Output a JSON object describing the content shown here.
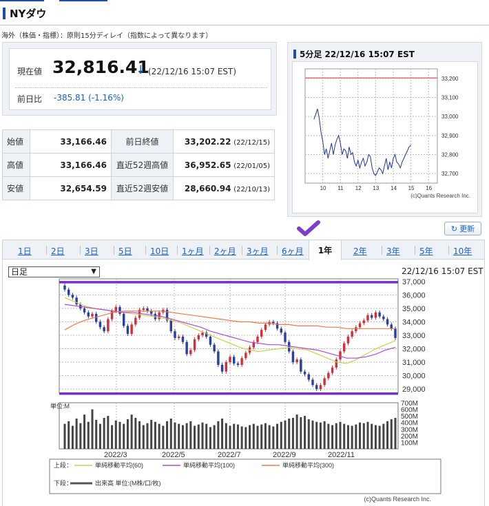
{
  "page": {
    "title": "NYダウ",
    "note": "海外（株価・指標）：原則15分ディレイ（指数によって異なります）"
  },
  "quote": {
    "current_label": "現在値",
    "current_value": "32,816.41",
    "arrow": "↓",
    "current_time": "(22/12/16 15:07 EST)",
    "change_label": "前日比",
    "change_value": "-385.81 (-1.16%)"
  },
  "stats": [
    {
      "label": "始値",
      "value": "33,166.46",
      "label2": "前日終値",
      "value2": "33,202.22",
      "date2": "(22/12/15)"
    },
    {
      "label": "高値",
      "value": "33,166.46",
      "label2": "直近52週高値",
      "value2": "36,952.65",
      "date2": "(22/01/05)"
    },
    {
      "label": "安値",
      "value": "32,654.59",
      "label2": "直近52週安値",
      "value2": "28,660.94",
      "date2": "(22/10/13)"
    }
  ],
  "refresh_label": "更新",
  "colors": {
    "accent": "#1f4ea8",
    "down": "#1a5fd0",
    "up_candle": "#d0303a",
    "down_candle": "#2b3fa0",
    "ma60": "#c8d24a",
    "ma100": "#b04ad8",
    "ma300": "#ee7a4a",
    "hline": "#7a2fc0",
    "prev_close": "#e06a7a"
  },
  "tabs": [
    {
      "label": "1日"
    },
    {
      "label": "2日"
    },
    {
      "label": "3日"
    },
    {
      "label": "5日"
    },
    {
      "label": "10日"
    },
    {
      "label": "1ヶ月"
    },
    {
      "label": "2ヶ月"
    },
    {
      "label": "3ヶ月"
    },
    {
      "label": "6ヶ月"
    },
    {
      "label": "1年",
      "active": true
    },
    {
      "label": "2年"
    },
    {
      "label": "3年"
    },
    {
      "label": "5年"
    },
    {
      "label": "10年"
    }
  ],
  "chart_data": [
    {
      "type": "line",
      "title": "5分足 22/12/16 15:07 EST",
      "x_ticks": [
        "10",
        "11",
        "12",
        "13",
        "14",
        "15",
        "16"
      ],
      "y_ticks": [
        "33,200",
        "33,100",
        "33,000",
        "32,900",
        "32,800",
        "32,700"
      ],
      "ylim": [
        32650,
        33250
      ],
      "xlim": [
        9.0,
        16.5
      ],
      "reference_line": 33202.22,
      "credit": "(c)Quants Research Inc.",
      "x": [
        9.5,
        9.6,
        9.7,
        9.8,
        9.9,
        10.0,
        10.1,
        10.2,
        10.3,
        10.4,
        10.5,
        10.6,
        10.7,
        10.8,
        10.9,
        11.0,
        11.1,
        11.2,
        11.3,
        11.4,
        11.5,
        11.6,
        11.7,
        11.8,
        11.9,
        12.0,
        12.1,
        12.2,
        12.3,
        12.4,
        12.5,
        12.6,
        12.7,
        12.8,
        12.9,
        13.0,
        13.1,
        13.2,
        13.3,
        13.4,
        13.5,
        13.6,
        13.7,
        13.8,
        13.9,
        14.0,
        14.1,
        14.2,
        14.3,
        14.4,
        14.5,
        14.6,
        14.7,
        14.8,
        14.9,
        15.0
      ],
      "y": [
        32985,
        33010,
        33040,
        32990,
        32920,
        32870,
        32800,
        32830,
        32780,
        32820,
        32860,
        32800,
        32850,
        32880,
        32900,
        32860,
        32800,
        32830,
        32820,
        32780,
        32840,
        32800,
        32810,
        32760,
        32740,
        32770,
        32730,
        32760,
        32780,
        32740,
        32760,
        32800,
        32790,
        32730,
        32700,
        32690,
        32710,
        32730,
        32720,
        32700,
        32740,
        32780,
        32720,
        32760,
        32730,
        32780,
        32800,
        32760,
        32750,
        32730,
        32760,
        32780,
        32800,
        32820,
        32840,
        32850
      ]
    },
    {
      "type": "candlestick",
      "selected_period_label": "日足",
      "timestamp": "22/12/16 15:07 EST",
      "x_ticks": [
        "2022/3",
        "2022/5",
        "2022/7",
        "2022/9",
        "2022/11"
      ],
      "y_ticks": [
        "37,000",
        "36,000",
        "35,000",
        "34,000",
        "33,000",
        "32,000",
        "31,000",
        "30,000",
        "29,000"
      ],
      "ylim": [
        28700,
        37200
      ],
      "reference_lines": [
        36952.65,
        28660.94
      ],
      "close_series": [
        36400,
        36000,
        35800,
        35300,
        35000,
        34700,
        34400,
        34600,
        34000,
        33600,
        33300,
        34200,
        34800,
        35100,
        34600,
        33700,
        33100,
        33800,
        34300,
        34900,
        35000,
        34800,
        34600,
        34200,
        34700,
        34900,
        34100,
        33300,
        32800,
        32900,
        32500,
        31600,
        31900,
        32700,
        33000,
        33200,
        32900,
        32300,
        31800,
        30800,
        30300,
        31000,
        31400,
        30900,
        30800,
        31300,
        31700,
        32100,
        32500,
        32900,
        33400,
        33800,
        34000,
        33900,
        33500,
        33200,
        32500,
        31800,
        31000,
        31200,
        30300,
        30100,
        29700,
        29300,
        29000,
        29300,
        29800,
        30200,
        30600,
        31200,
        31800,
        32400,
        32900,
        33300,
        33600,
        33900,
        34100,
        34500,
        34300,
        34700,
        34400,
        34200,
        33800,
        33500,
        32800
      ],
      "series": [
        {
          "name": "単純移動平均(60)",
          "values": [
            35800,
            35500,
            35200,
            35000,
            34900,
            34800,
            34700,
            34600,
            34500,
            34400,
            34300,
            34100,
            33900,
            33600,
            33300,
            33000,
            32700,
            32400,
            32100,
            31900,
            31800,
            31900,
            32000,
            32100,
            32000,
            31900,
            31600,
            31300,
            31000,
            30900,
            31200,
            31600,
            32000,
            32300,
            32600
          ]
        },
        {
          "name": "単純移動平均(100)",
          "values": [
            35300,
            35200,
            35100,
            35000,
            34900,
            34800,
            34700,
            34700,
            34600,
            34500,
            34400,
            34200,
            34000,
            33800,
            33600,
            33300,
            33100,
            32900,
            32700,
            32500,
            32400,
            32300,
            32300,
            32200,
            32100,
            32000,
            31900,
            31700,
            31500,
            31300,
            31300,
            31400,
            31600,
            31900,
            32100
          ]
        },
        {
          "name": "単純移動平均(300)",
          "values": [
            33400,
            33800,
            34100,
            34300,
            34500,
            34700,
            34800,
            34800,
            34800,
            34800,
            34800,
            34700,
            34600,
            34500,
            34400,
            34300,
            34200,
            34100,
            34000,
            34000,
            33900,
            33900,
            33800,
            33800,
            33700,
            33700,
            33700,
            33600,
            33600,
            33500,
            33500,
            33500,
            33500,
            33500,
            33500
          ]
        }
      ],
      "legend_labels": {
        "upper": "上段：",
        "lower": "下段：",
        "volume": "出来高 単位:(M株/口/枚)"
      },
      "volume": {
        "unit_label": "単位:M",
        "y_ticks": [
          "700M",
          "600M",
          "500M",
          "400M",
          "300M",
          "200M",
          "100M"
        ],
        "ylim": [
          0,
          700
        ],
        "values": [
          380,
          420,
          350,
          460,
          390,
          520,
          410,
          600,
          440,
          380,
          470,
          500,
          360,
          430,
          410,
          380,
          450,
          520,
          470,
          420,
          360,
          390,
          440,
          410,
          380,
          350,
          420,
          460,
          400,
          380,
          360,
          390,
          420,
          350,
          370,
          400,
          380,
          330,
          360,
          420,
          460,
          390,
          350,
          380,
          370,
          340,
          330,
          360,
          380,
          350,
          370,
          390,
          360,
          340,
          380,
          410,
          430,
          460,
          470,
          520,
          480,
          500,
          450,
          430,
          410,
          400,
          420,
          380,
          360,
          390,
          410,
          380,
          360,
          350,
          370,
          400,
          390,
          410,
          380,
          360,
          350,
          380,
          420,
          450,
          470
        ]
      },
      "credit": "(c)Quants Research Inc."
    }
  ]
}
